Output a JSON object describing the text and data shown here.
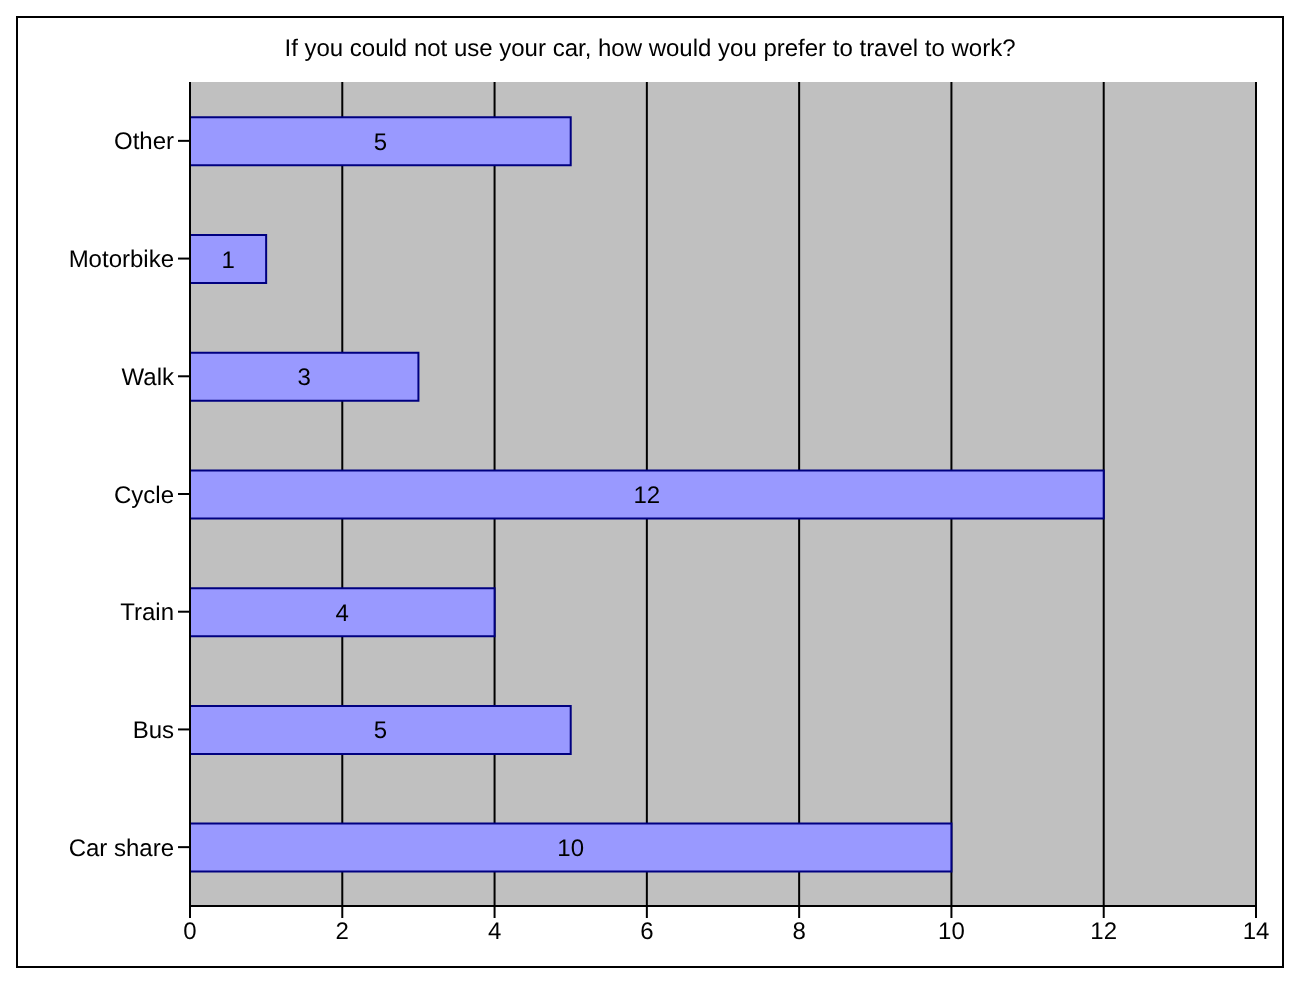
{
  "chart_data": {
    "type": "bar",
    "orientation": "horizontal",
    "title": "If you could not use your car, how would you prefer to travel to work?",
    "categories": [
      "Other",
      "Motorbike",
      "Walk",
      "Cycle",
      "Train",
      "Bus",
      "Car share"
    ],
    "values": [
      5,
      1,
      3,
      12,
      4,
      5,
      10
    ],
    "color": "#9999ff",
    "xlim": [
      0,
      14
    ],
    "xticks": [
      0,
      2,
      4,
      6,
      8,
      10,
      12,
      14
    ],
    "grid": "x",
    "data_labels": true,
    "legend": false
  }
}
